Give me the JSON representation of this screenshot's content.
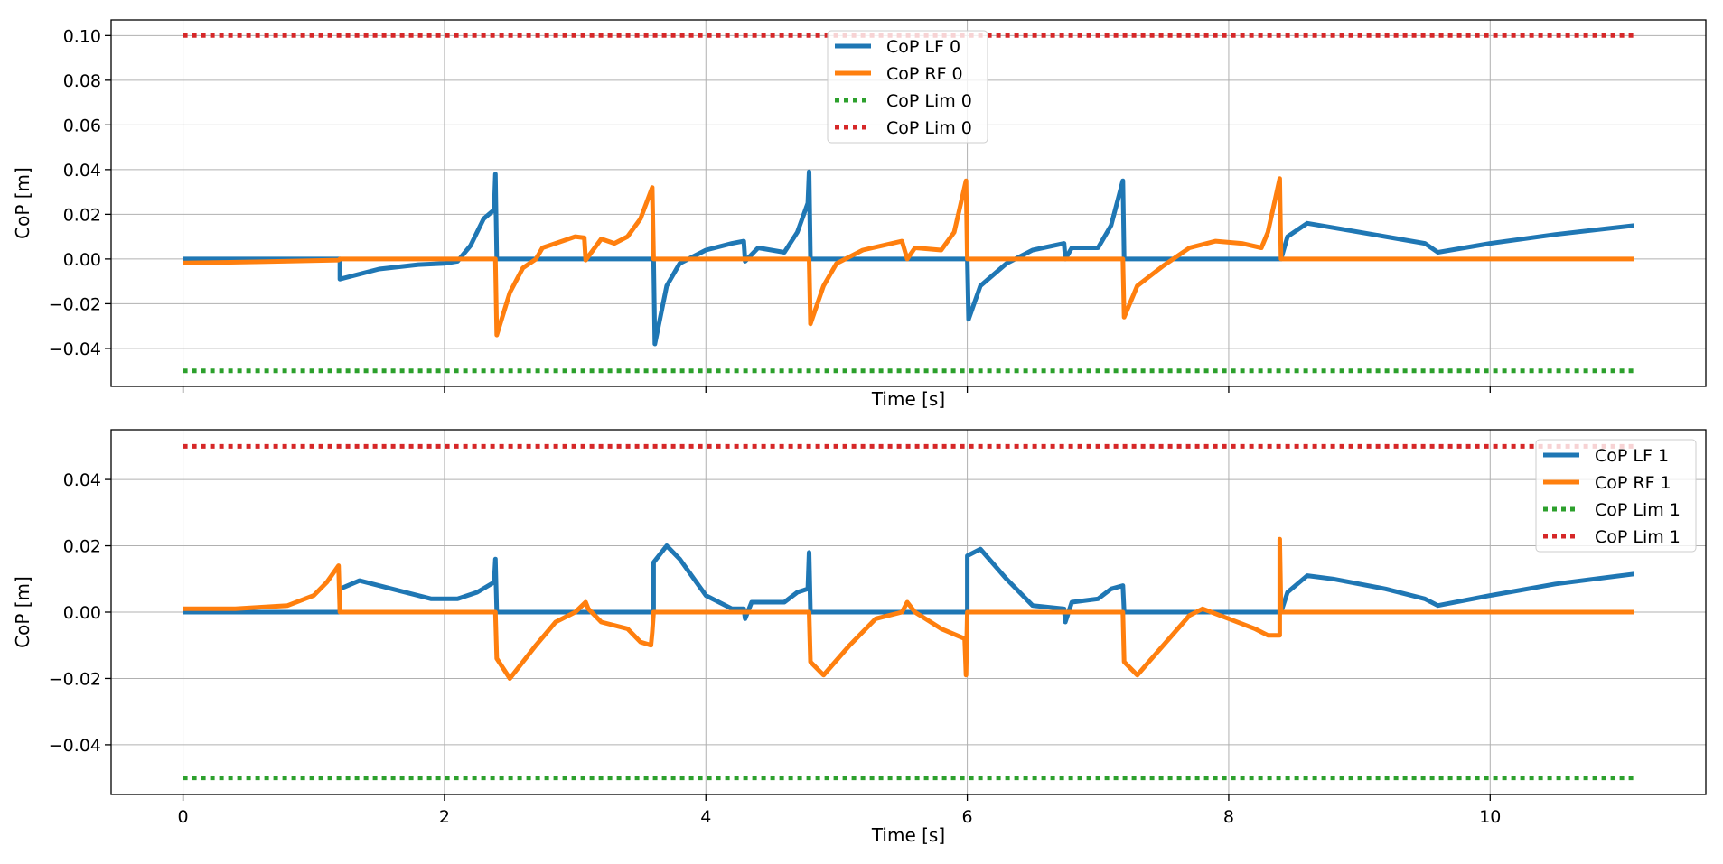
{
  "colors": {
    "lf": "#1f77b4",
    "rf": "#ff7f0e",
    "lim_low": "#2ca02c",
    "lim_high": "#d62728",
    "grid": "#b0b0b0",
    "axis": "#000000"
  },
  "chart_data": [
    {
      "type": "line",
      "xlabel": "Time [s]",
      "ylabel": "CoP [m]",
      "xlim": [
        -0.55,
        11.65
      ],
      "ylim": [
        -0.057,
        0.107
      ],
      "xticks": [
        0,
        2,
        4,
        6,
        8,
        10
      ],
      "xtick_labels": [
        "",
        "",
        "",
        "",
        "",
        ""
      ],
      "yticks": [
        -0.04,
        -0.02,
        0.0,
        0.02,
        0.04,
        0.06,
        0.08,
        0.1
      ],
      "ytick_labels": [
        "−0.04",
        "−0.02",
        "0.00",
        "0.02",
        "0.04",
        "0.06",
        "0.08",
        "0.10"
      ],
      "grid": true,
      "legend_position": "top-center",
      "series": [
        {
          "name": "CoP LF 0",
          "style": "solid",
          "color_key": "lf",
          "points": [
            [
              0,
              0
            ],
            [
              1.2,
              0
            ],
            [
              1.2,
              -0.009
            ],
            [
              1.5,
              -0.0045
            ],
            [
              1.8,
              -0.0025
            ],
            [
              2.0,
              -0.002
            ],
            [
              2.1,
              -0.001
            ],
            [
              2.2,
              0.006
            ],
            [
              2.3,
              0.018
            ],
            [
              2.38,
              0.022
            ],
            [
              2.39,
              0.038
            ],
            [
              2.4,
              0.0
            ],
            [
              3.6,
              0.0
            ],
            [
              3.61,
              -0.038
            ],
            [
              3.7,
              -0.012
            ],
            [
              3.8,
              -0.002
            ],
            [
              4.0,
              0.004
            ],
            [
              4.2,
              0.007
            ],
            [
              4.29,
              0.008
            ],
            [
              4.3,
              -0.001
            ],
            [
              4.4,
              0.005
            ],
            [
              4.6,
              0.003
            ],
            [
              4.7,
              0.012
            ],
            [
              4.78,
              0.025
            ],
            [
              4.79,
              0.039
            ],
            [
              4.8,
              0.0
            ],
            [
              6.0,
              0.0
            ],
            [
              6.01,
              -0.027
            ],
            [
              6.1,
              -0.012
            ],
            [
              6.3,
              -0.002
            ],
            [
              6.5,
              0.004
            ],
            [
              6.74,
              0.007
            ],
            [
              6.75,
              0.0
            ],
            [
              6.8,
              0.005
            ],
            [
              7.0,
              0.005
            ],
            [
              7.1,
              0.015
            ],
            [
              7.19,
              0.035
            ],
            [
              7.2,
              0.0
            ],
            [
              8.4,
              0.0
            ],
            [
              8.45,
              0.01
            ],
            [
              8.6,
              0.016
            ],
            [
              8.8,
              0.014
            ],
            [
              9.2,
              0.01
            ],
            [
              9.5,
              0.007
            ],
            [
              9.6,
              0.003
            ],
            [
              10.0,
              0.007
            ],
            [
              10.5,
              0.011
            ],
            [
              11.1,
              0.015
            ]
          ]
        },
        {
          "name": "CoP RF 0",
          "style": "solid",
          "color_key": "rf",
          "points": [
            [
              0,
              -0.0018
            ],
            [
              0.6,
              -0.0012
            ],
            [
              1.19,
              -0.0005
            ],
            [
              1.2,
              0.0
            ],
            [
              2.39,
              0.0
            ],
            [
              2.4,
              -0.034
            ],
            [
              2.5,
              -0.015
            ],
            [
              2.6,
              -0.004
            ],
            [
              2.7,
              0.0
            ],
            [
              2.75,
              0.005
            ],
            [
              2.9,
              0.008
            ],
            [
              3.0,
              0.01
            ],
            [
              3.07,
              0.0095
            ],
            [
              3.08,
              -0.0005
            ],
            [
              3.2,
              0.009
            ],
            [
              3.3,
              0.007
            ],
            [
              3.4,
              0.01
            ],
            [
              3.5,
              0.018
            ],
            [
              3.59,
              0.032
            ],
            [
              3.6,
              0.0
            ],
            [
              4.79,
              0.0
            ],
            [
              4.8,
              -0.029
            ],
            [
              4.9,
              -0.012
            ],
            [
              5.0,
              -0.002
            ],
            [
              5.2,
              0.004
            ],
            [
              5.5,
              0.008
            ],
            [
              5.54,
              0.0
            ],
            [
              5.6,
              0.005
            ],
            [
              5.8,
              0.004
            ],
            [
              5.9,
              0.012
            ],
            [
              5.99,
              0.035
            ],
            [
              6.0,
              0.0
            ],
            [
              7.19,
              0.0
            ],
            [
              7.2,
              -0.026
            ],
            [
              7.3,
              -0.012
            ],
            [
              7.5,
              -0.003
            ],
            [
              7.7,
              0.005
            ],
            [
              7.9,
              0.008
            ],
            [
              8.1,
              0.007
            ],
            [
              8.25,
              0.005
            ],
            [
              8.3,
              0.012
            ],
            [
              8.39,
              0.036
            ],
            [
              8.4,
              0.0
            ],
            [
              11.1,
              0.0
            ]
          ]
        },
        {
          "name": "CoP Lim 0",
          "style": "dotted",
          "color_key": "lim_low",
          "points": [
            [
              0,
              -0.05
            ],
            [
              11.1,
              -0.05
            ]
          ]
        },
        {
          "name": "CoP Lim 0",
          "style": "dotted",
          "color_key": "lim_high",
          "points": [
            [
              0,
              0.1
            ],
            [
              11.1,
              0.1
            ]
          ]
        }
      ]
    },
    {
      "type": "line",
      "xlabel": "Time [s]",
      "ylabel": "CoP [m]",
      "xlim": [
        -0.55,
        11.65
      ],
      "ylim": [
        -0.055,
        0.055
      ],
      "xticks": [
        0,
        2,
        4,
        6,
        8,
        10
      ],
      "xtick_labels": [
        "0",
        "2",
        "4",
        "6",
        "8",
        "10"
      ],
      "yticks": [
        -0.04,
        -0.02,
        0.0,
        0.02,
        0.04
      ],
      "ytick_labels": [
        "−0.04",
        "−0.02",
        "0.00",
        "0.02",
        "0.04"
      ],
      "grid": true,
      "legend_position": "top-right",
      "series": [
        {
          "name": "CoP LF 1",
          "style": "solid",
          "color_key": "lf",
          "points": [
            [
              0,
              0
            ],
            [
              1.2,
              0
            ],
            [
              1.2,
              0.007
            ],
            [
              1.35,
              0.0095
            ],
            [
              1.6,
              0.007
            ],
            [
              1.9,
              0.004
            ],
            [
              2.1,
              0.004
            ],
            [
              2.25,
              0.006
            ],
            [
              2.38,
              0.009
            ],
            [
              2.39,
              0.016
            ],
            [
              2.4,
              0.0
            ],
            [
              3.6,
              0.0
            ],
            [
              3.6,
              0.015
            ],
            [
              3.7,
              0.02
            ],
            [
              3.8,
              0.016
            ],
            [
              4.0,
              0.005
            ],
            [
              4.2,
              0.001
            ],
            [
              4.29,
              0.001
            ],
            [
              4.3,
              -0.002
            ],
            [
              4.35,
              0.003
            ],
            [
              4.6,
              0.003
            ],
            [
              4.7,
              0.006
            ],
            [
              4.78,
              0.007
            ],
            [
              4.79,
              0.018
            ],
            [
              4.8,
              0.0
            ],
            [
              6.0,
              0.0
            ],
            [
              6.0,
              0.017
            ],
            [
              6.1,
              0.019
            ],
            [
              6.3,
              0.01
            ],
            [
              6.5,
              0.002
            ],
            [
              6.74,
              0.001
            ],
            [
              6.75,
              -0.003
            ],
            [
              6.8,
              0.003
            ],
            [
              7.0,
              0.004
            ],
            [
              7.1,
              0.007
            ],
            [
              7.19,
              0.008
            ],
            [
              7.2,
              0.0
            ],
            [
              8.4,
              0.0
            ],
            [
              8.45,
              0.006
            ],
            [
              8.6,
              0.011
            ],
            [
              8.8,
              0.01
            ],
            [
              9.2,
              0.007
            ],
            [
              9.5,
              0.004
            ],
            [
              9.6,
              0.002
            ],
            [
              10.0,
              0.005
            ],
            [
              10.5,
              0.0085
            ],
            [
              11.1,
              0.0115
            ]
          ]
        },
        {
          "name": "CoP RF 1",
          "style": "solid",
          "color_key": "rf",
          "points": [
            [
              0,
              0.001
            ],
            [
              0.4,
              0.001
            ],
            [
              0.8,
              0.002
            ],
            [
              1.0,
              0.005
            ],
            [
              1.1,
              0.009
            ],
            [
              1.19,
              0.014
            ],
            [
              1.2,
              0.0
            ],
            [
              2.39,
              0.0
            ],
            [
              2.4,
              -0.014
            ],
            [
              2.5,
              -0.02
            ],
            [
              2.7,
              -0.01
            ],
            [
              2.85,
              -0.003
            ],
            [
              3.0,
              0.0
            ],
            [
              3.08,
              0.003
            ],
            [
              3.1,
              0.001
            ],
            [
              3.2,
              -0.003
            ],
            [
              3.4,
              -0.005
            ],
            [
              3.5,
              -0.009
            ],
            [
              3.58,
              -0.01
            ],
            [
              3.59,
              -0.006
            ],
            [
              3.6,
              0.0
            ],
            [
              4.79,
              0.0
            ],
            [
              4.8,
              -0.015
            ],
            [
              4.9,
              -0.019
            ],
            [
              5.1,
              -0.01
            ],
            [
              5.3,
              -0.002
            ],
            [
              5.5,
              0.0
            ],
            [
              5.54,
              0.003
            ],
            [
              5.6,
              0.0
            ],
            [
              5.8,
              -0.005
            ],
            [
              5.98,
              -0.008
            ],
            [
              5.99,
              -0.019
            ],
            [
              6.0,
              0.0
            ],
            [
              7.19,
              0.0
            ],
            [
              7.2,
              -0.015
            ],
            [
              7.3,
              -0.019
            ],
            [
              7.5,
              -0.01
            ],
            [
              7.7,
              -0.001
            ],
            [
              7.8,
              0.001
            ],
            [
              8.0,
              -0.002
            ],
            [
              8.2,
              -0.005
            ],
            [
              8.3,
              -0.007
            ],
            [
              8.39,
              -0.007
            ],
            [
              8.39,
              0.022
            ],
            [
              8.4,
              0.0
            ],
            [
              11.1,
              0.0
            ]
          ]
        },
        {
          "name": "CoP Lim 1",
          "style": "dotted",
          "color_key": "lim_low",
          "points": [
            [
              0,
              -0.05
            ],
            [
              11.1,
              -0.05
            ]
          ]
        },
        {
          "name": "CoP Lim 1",
          "style": "dotted",
          "color_key": "lim_high",
          "points": [
            [
              0,
              0.05
            ],
            [
              11.1,
              0.05
            ]
          ]
        }
      ]
    }
  ]
}
